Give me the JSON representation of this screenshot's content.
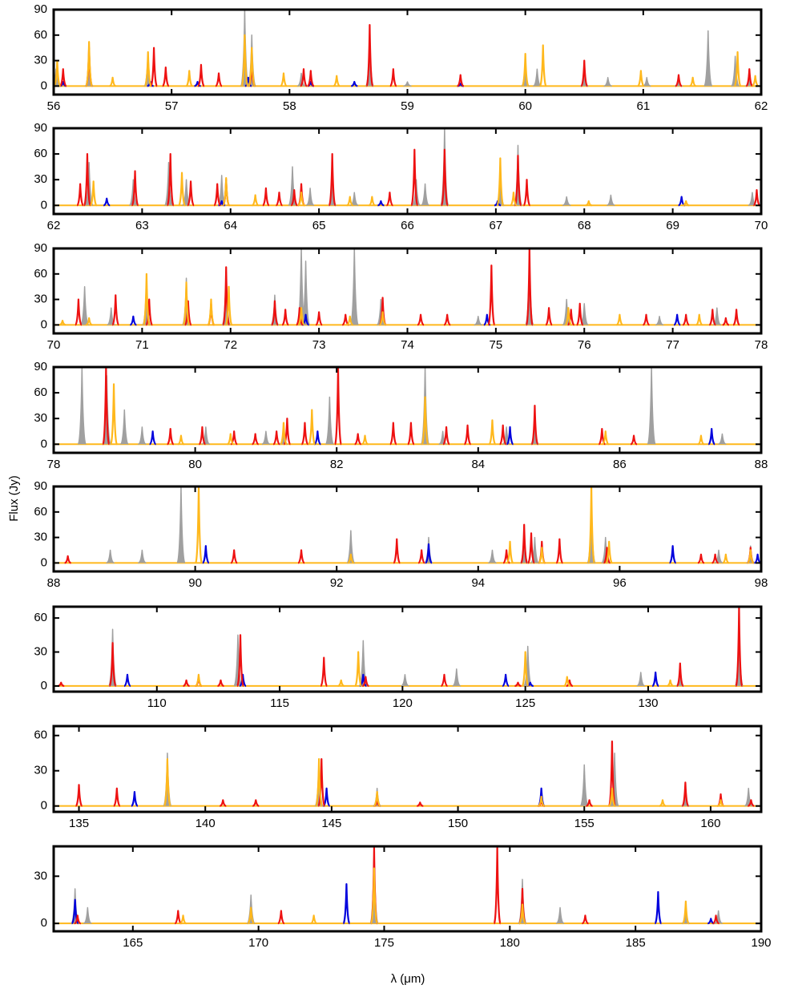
{
  "chart_data": [
    {
      "type": "spectrum",
      "xlim": [
        56,
        62
      ],
      "ylim": [
        -10,
        90
      ],
      "xticks": [
        56,
        57,
        58,
        59,
        60,
        61,
        62
      ],
      "yticks": [
        0,
        30,
        60,
        90
      ],
      "series": [
        {
          "color": "#a0a0a0",
          "x": [
            56.02,
            56.3,
            56.8,
            57.62,
            57.68,
            58.1,
            58.68,
            59.0,
            60.0,
            60.1,
            60.5,
            60.7,
            61.03,
            61.3,
            61.55,
            61.78,
            61.9
          ],
          "values": [
            20,
            40,
            40,
            90,
            60,
            15,
            60,
            5,
            30,
            20,
            20,
            10,
            10,
            10,
            65,
            35,
            15
          ]
        },
        {
          "color": "#0000dd",
          "x": [
            56.08,
            56.82,
            57.22,
            57.65,
            58.18,
            58.55,
            59.45
          ],
          "values": [
            5,
            5,
            5,
            10,
            5,
            5,
            3
          ]
        },
        {
          "color": "#ee1111",
          "x": [
            56.08,
            56.3,
            56.85,
            56.95,
            57.25,
            57.4,
            57.68,
            58.12,
            58.18,
            58.68,
            58.88,
            59.45,
            60.5,
            61.3,
            61.9
          ],
          "values": [
            20,
            45,
            45,
            22,
            25,
            15,
            28,
            20,
            18,
            72,
            20,
            13,
            30,
            13,
            20
          ]
        },
        {
          "color": "#ffb81c",
          "x": [
            56.03,
            56.3,
            56.5,
            56.8,
            57.15,
            57.62,
            57.68,
            57.95,
            58.4,
            60.0,
            60.15,
            60.98,
            61.42,
            61.8,
            61.95
          ],
          "values": [
            30,
            52,
            10,
            40,
            18,
            60,
            45,
            15,
            12,
            38,
            48,
            18,
            10,
            40,
            12
          ]
        }
      ]
    },
    {
      "type": "spectrum",
      "xlim": [
        62,
        70
      ],
      "ylim": [
        -10,
        90
      ],
      "xticks": [
        62,
        63,
        64,
        65,
        66,
        67,
        68,
        69,
        70
      ],
      "yticks": [
        0,
        30,
        60,
        90
      ],
      "series": [
        {
          "color": "#a0a0a0",
          "x": [
            62.4,
            62.9,
            63.3,
            63.5,
            63.9,
            64.7,
            64.9,
            65.15,
            65.4,
            66.1,
            66.2,
            66.42,
            67.05,
            67.25,
            67.8,
            68.3,
            69.9
          ],
          "values": [
            50,
            30,
            50,
            30,
            35,
            45,
            20,
            30,
            15,
            30,
            25,
            90,
            40,
            70,
            10,
            12,
            15
          ]
        },
        {
          "color": "#0000dd",
          "x": [
            62.6,
            63.9,
            65.7,
            67.02,
            69.1
          ],
          "values": [
            8,
            5,
            5,
            5,
            10
          ]
        },
        {
          "color": "#ee1111",
          "x": [
            62.3,
            62.38,
            62.92,
            63.32,
            63.55,
            63.85,
            63.95,
            64.4,
            64.55,
            64.72,
            64.8,
            65.15,
            65.8,
            66.08,
            66.42,
            67.25,
            67.35,
            69.95
          ],
          "values": [
            25,
            60,
            40,
            60,
            28,
            25,
            30,
            20,
            15,
            18,
            25,
            60,
            15,
            65,
            65,
            58,
            30,
            18
          ]
        },
        {
          "color": "#ffb81c",
          "x": [
            62.45,
            63.45,
            63.95,
            64.28,
            64.8,
            65.35,
            65.6,
            67.05,
            67.2,
            68.05,
            69.15
          ],
          "values": [
            28,
            38,
            32,
            12,
            15,
            10,
            10,
            55,
            15,
            5,
            5
          ]
        }
      ]
    },
    {
      "type": "spectrum",
      "xlim": [
        70,
        78
      ],
      "ylim": [
        -10,
        90
      ],
      "xticks": [
        70,
        71,
        72,
        73,
        74,
        75,
        76,
        77,
        78
      ],
      "yticks": [
        0,
        30,
        60,
        90
      ],
      "series": [
        {
          "color": "#a0a0a0",
          "x": [
            70.35,
            70.65,
            71.05,
            71.5,
            71.95,
            72.5,
            72.8,
            72.85,
            73.4,
            73.7,
            74.8,
            75.38,
            75.8,
            76.0,
            76.85,
            77.5
          ],
          "values": [
            45,
            20,
            55,
            55,
            65,
            35,
            90,
            75,
            90,
            30,
            10,
            80,
            30,
            25,
            10,
            20
          ]
        },
        {
          "color": "#0000dd",
          "x": [
            70.9,
            72.85,
            74.9,
            77.05
          ],
          "values": [
            10,
            12,
            12,
            12
          ]
        },
        {
          "color": "#ee1111",
          "x": [
            70.28,
            70.7,
            71.08,
            71.52,
            71.78,
            71.95,
            72.5,
            72.62,
            72.78,
            73.0,
            73.3,
            73.72,
            74.15,
            74.45,
            74.95,
            75.38,
            75.6,
            75.85,
            75.95,
            76.7,
            77.15,
            77.45,
            77.6,
            77.72
          ],
          "values": [
            30,
            35,
            30,
            28,
            25,
            68,
            28,
            18,
            20,
            15,
            12,
            32,
            12,
            12,
            70,
            90,
            20,
            18,
            25,
            12,
            12,
            18,
            8,
            18
          ]
        },
        {
          "color": "#ffb81c",
          "x": [
            70.1,
            70.4,
            71.05,
            71.5,
            71.78,
            71.98,
            72.8,
            73.35,
            73.72,
            75.82,
            76.4,
            77.3
          ],
          "values": [
            5,
            8,
            60,
            50,
            30,
            45,
            20,
            10,
            15,
            20,
            12,
            12
          ]
        }
      ]
    },
    {
      "type": "spectrum",
      "xlim": [
        78,
        88
      ],
      "ylim": [
        -10,
        90
      ],
      "xticks": [
        78,
        80,
        82,
        84,
        86,
        88
      ],
      "yticks": [
        0,
        30,
        60,
        90
      ],
      "series": [
        {
          "color": "#a0a0a0",
          "x": [
            78.4,
            78.75,
            79.0,
            79.25,
            80.15,
            81.0,
            81.25,
            81.9,
            83.25,
            83.5,
            84.4,
            84.8,
            86.45,
            87.45
          ],
          "values": [
            90,
            80,
            40,
            20,
            20,
            15,
            20,
            55,
            90,
            15,
            20,
            30,
            90,
            12
          ]
        },
        {
          "color": "#0000dd",
          "x": [
            79.4,
            81.73,
            84.45,
            87.3
          ],
          "values": [
            15,
            15,
            20,
            18
          ]
        },
        {
          "color": "#ee1111",
          "x": [
            78.74,
            79.65,
            80.1,
            80.55,
            80.85,
            81.15,
            81.3,
            81.55,
            82.02,
            82.3,
            82.8,
            83.05,
            83.55,
            83.85,
            84.35,
            84.8,
            85.75,
            86.2
          ],
          "values": [
            90,
            18,
            20,
            15,
            12,
            15,
            30,
            25,
            90,
            12,
            25,
            25,
            20,
            22,
            22,
            45,
            18,
            10
          ]
        },
        {
          "color": "#ffb81c",
          "x": [
            78.85,
            79.8,
            80.5,
            81.25,
            81.65,
            82.4,
            83.25,
            84.2,
            85.8,
            87.15
          ],
          "values": [
            70,
            10,
            12,
            25,
            40,
            10,
            55,
            28,
            15,
            10
          ]
        }
      ]
    },
    {
      "type": "spectrum",
      "xlim": [
        88,
        98
      ],
      "ylim": [
        -10,
        90
      ],
      "xticks": [
        88,
        90,
        92,
        94,
        96,
        98
      ],
      "yticks": [
        0,
        30,
        60,
        90
      ],
      "ylabel": "Flux (Jy)",
      "series": [
        {
          "color": "#a0a0a0",
          "x": [
            88.8,
            89.25,
            89.8,
            92.2,
            93.3,
            94.2,
            94.65,
            94.8,
            95.6,
            95.8,
            97.4,
            97.85
          ],
          "values": [
            15,
            15,
            90,
            38,
            30,
            15,
            38,
            30,
            70,
            30,
            15,
            20
          ]
        },
        {
          "color": "#0000dd",
          "x": [
            90.15,
            93.3,
            96.75,
            97.95
          ],
          "values": [
            20,
            22,
            20,
            10
          ]
        },
        {
          "color": "#ee1111",
          "x": [
            88.2,
            90.55,
            91.5,
            92.85,
            93.2,
            94.4,
            94.65,
            94.75,
            94.9,
            95.15,
            95.82,
            97.15,
            97.35,
            97.85
          ],
          "values": [
            8,
            15,
            15,
            28,
            15,
            15,
            45,
            35,
            25,
            28,
            18,
            10,
            10,
            18
          ]
        },
        {
          "color": "#ffb81c",
          "x": [
            90.05,
            92.2,
            94.45,
            94.9,
            95.6,
            95.85,
            97.5,
            97.85
          ],
          "values": [
            90,
            10,
            25,
            18,
            90,
            25,
            10,
            15
          ]
        }
      ]
    },
    {
      "type": "spectrum",
      "xlim": [
        105.8,
        134.6
      ],
      "ylim": [
        -5,
        70
      ],
      "xticks": [
        110,
        115,
        120,
        125,
        130
      ],
      "yticks": [
        0,
        30,
        60
      ],
      "series": [
        {
          "color": "#a0a0a0",
          "x": [
            108.2,
            113.3,
            118.4,
            120.1,
            122.2,
            125.1,
            129.7,
            131.3,
            133.7
          ],
          "values": [
            50,
            45,
            40,
            10,
            15,
            35,
            12,
            15,
            55
          ]
        },
        {
          "color": "#0000dd",
          "x": [
            108.8,
            113.5,
            118.4,
            124.2,
            125.2,
            130.3
          ],
          "values": [
            10,
            10,
            10,
            10,
            3,
            12
          ]
        },
        {
          "color": "#ee1111",
          "x": [
            106.1,
            108.2,
            111.2,
            111.7,
            112.6,
            113.4,
            116.8,
            118.5,
            121.7,
            124.7,
            126.8,
            131.3,
            133.7
          ],
          "values": [
            3,
            38,
            5,
            8,
            5,
            45,
            25,
            8,
            10,
            3,
            5,
            20,
            70
          ]
        },
        {
          "color": "#ffb81c",
          "x": [
            111.7,
            117.5,
            118.2,
            125.0,
            126.7,
            130.9
          ],
          "values": [
            10,
            5,
            30,
            30,
            8,
            5
          ]
        }
      ]
    },
    {
      "type": "spectrum",
      "xlim": [
        134,
        162
      ],
      "ylim": [
        -5,
        68
      ],
      "xticks": [
        135,
        140,
        145,
        150,
        155,
        160
      ],
      "yticks": [
        0,
        30,
        60
      ],
      "series": [
        {
          "color": "#a0a0a0",
          "x": [
            138.5,
            144.5,
            146.8,
            155.0,
            156.2,
            159.0,
            161.5
          ],
          "values": [
            45,
            40,
            15,
            35,
            45,
            12,
            15
          ]
        },
        {
          "color": "#0000dd",
          "x": [
            137.2,
            144.8,
            153.3
          ],
          "values": [
            12,
            15,
            15
          ]
        },
        {
          "color": "#ee1111",
          "x": [
            135.0,
            136.5,
            140.7,
            142.0,
            144.6,
            146.8,
            148.5,
            153.3,
            155.2,
            156.1,
            159.0,
            160.4,
            161.6
          ],
          "values": [
            18,
            15,
            5,
            5,
            40,
            5,
            3,
            5,
            5,
            55,
            20,
            10,
            5
          ]
        },
        {
          "color": "#ffb81c",
          "x": [
            138.5,
            144.5,
            146.8,
            153.3,
            156.1,
            158.1,
            160.4
          ],
          "values": [
            40,
            40,
            12,
            8,
            15,
            5,
            5
          ]
        }
      ]
    },
    {
      "type": "spectrum",
      "xlim": [
        161.85,
        190
      ],
      "ylim": [
        -5,
        49
      ],
      "xticks": [
        165,
        170,
        175,
        180,
        185,
        190
      ],
      "yticks": [
        0,
        30
      ],
      "xlabel": "λ (μm)",
      "series": [
        {
          "color": "#a0a0a0",
          "x": [
            162.7,
            163.2,
            169.7,
            174.6,
            180.5,
            182.0,
            187.0,
            188.3
          ],
          "values": [
            22,
            10,
            18,
            48,
            28,
            10,
            10,
            8
          ]
        },
        {
          "color": "#0000dd",
          "x": [
            162.7,
            173.5,
            185.9,
            188.0
          ],
          "values": [
            15,
            25,
            20,
            3
          ]
        },
        {
          "color": "#ee1111",
          "x": [
            162.8,
            166.8,
            170.9,
            174.6,
            179.5,
            180.5,
            183.0,
            188.2
          ],
          "values": [
            5,
            8,
            8,
            48,
            48,
            22,
            5,
            5
          ]
        },
        {
          "color": "#ffb81c",
          "x": [
            167.0,
            169.7,
            172.2,
            174.6,
            180.5,
            187.0
          ],
          "values": [
            5,
            10,
            5,
            35,
            12,
            14
          ]
        }
      ]
    }
  ]
}
